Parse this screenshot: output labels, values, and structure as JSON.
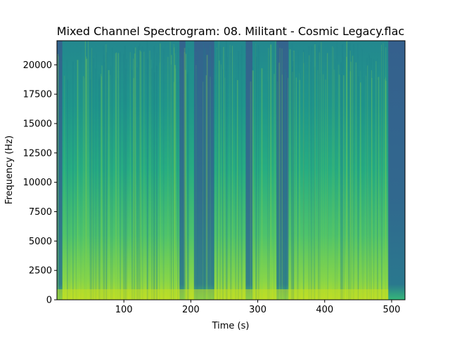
{
  "chart_data": {
    "type": "heatmap",
    "title": "Mixed Channel Spectrogram: 08. Militant - Cosmic Legacy.flac",
    "xlabel": "Time (s)",
    "ylabel": "Frequency (Hz)",
    "xlim": [
      0,
      520
    ],
    "ylim": [
      0,
      22050
    ],
    "x_ticks": [
      100,
      200,
      300,
      400,
      500
    ],
    "y_ticks": [
      0,
      2500,
      5000,
      7500,
      10000,
      12500,
      15000,
      17500,
      20000
    ],
    "colormap": "viridis",
    "grid": false,
    "colors": {
      "low": "#30638e",
      "mid": "#1f9e89",
      "high": "#a2da37"
    },
    "quiet_regions_s": [
      [
        0,
        8
      ],
      [
        183,
        192
      ],
      [
        205,
        235
      ],
      [
        282,
        292
      ],
      [
        328,
        346
      ],
      [
        495,
        520
      ]
    ]
  }
}
